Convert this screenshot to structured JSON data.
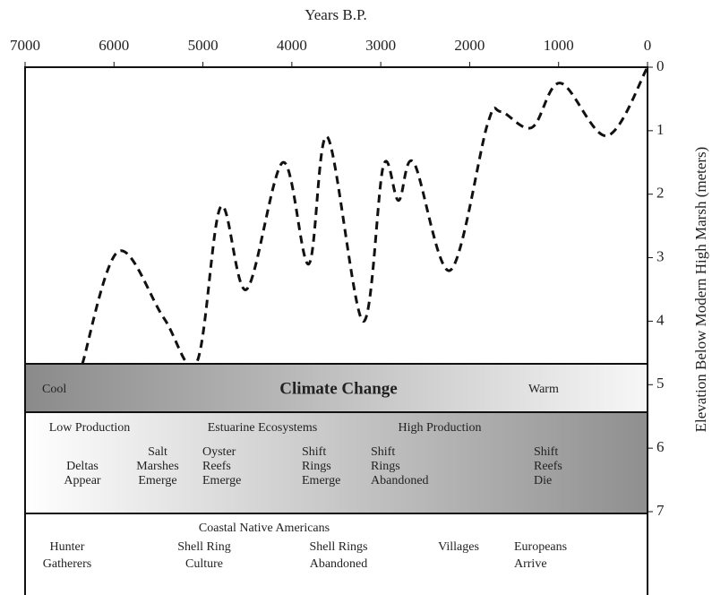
{
  "chart_data": {
    "type": "line",
    "xlabel": "Years B.P.",
    "ylabel": "Elevation Below Modern High Marsh (meters)",
    "x": [
      6355,
      5950,
      5440,
      5070,
      4800,
      4510,
      4100,
      3810,
      3600,
      3200,
      2970,
      2800,
      2630,
      2220,
      1800,
      1650,
      1300,
      980,
      455,
      0
    ],
    "values": [
      4.67,
      2.9,
      3.95,
      4.65,
      2.2,
      3.5,
      1.5,
      3.1,
      1.1,
      4.0,
      1.55,
      2.1,
      1.5,
      3.2,
      0.9,
      0.7,
      0.95,
      0.25,
      1.08,
      0
    ],
    "color": "#111111",
    "xlim": [
      7000,
      0
    ],
    "xticks": [
      7000,
      6000,
      5000,
      4000,
      3000,
      2000,
      1000,
      0
    ],
    "ylim": [
      0,
      7
    ],
    "yticks": [
      0,
      1,
      2,
      3,
      4,
      5,
      6,
      7
    ],
    "bands": [
      {
        "left": "Cool",
        "center": "Climate Change",
        "right": "Warm"
      },
      {
        "headers": [
          "Low Production",
          "Estuarine Ecosystems",
          "High Production"
        ],
        "items": [
          [
            "Deltas",
            "Appear"
          ],
          [
            "Salt",
            "Marshes",
            "Emerge"
          ],
          [
            "Oyster",
            "Reefs",
            "Emerge"
          ],
          [
            "Shift",
            "Rings",
            "Emerge"
          ],
          [
            "Shift",
            "Rings",
            "Abandoned"
          ],
          [
            "Shift",
            "Reefs",
            "Die"
          ]
        ]
      },
      {
        "header": "Coastal Native Americans",
        "items": [
          [
            "Hunter",
            "Gatherers"
          ],
          [
            "Shell Ring",
            "Culture"
          ],
          [
            "Shell Rings",
            "Abandoned"
          ],
          [
            "Villages"
          ],
          [
            "Europeans",
            "Arrive"
          ]
        ]
      }
    ]
  }
}
